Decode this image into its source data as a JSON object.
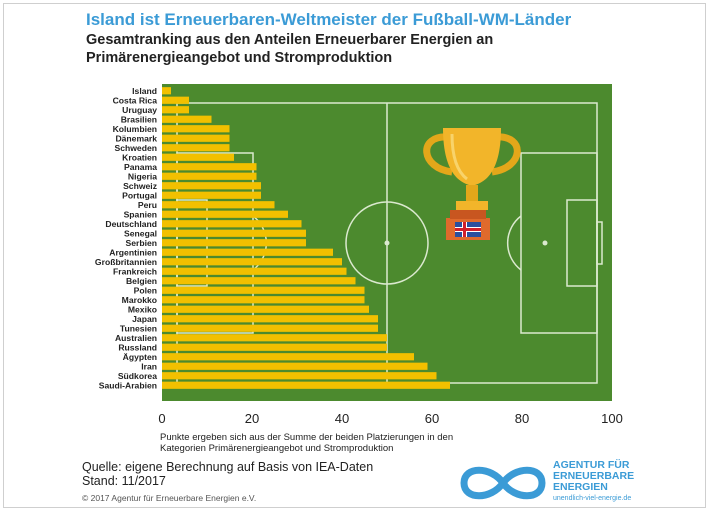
{
  "header": {
    "title": "Island ist Erneuerbaren-Weltmeister der Fußball-WM-Länder",
    "subtitle_line1": "Gesamtranking aus den Anteilen Erneuerbarer Energien an",
    "subtitle_line2": "Primärenergieangebot und Stromproduktion"
  },
  "chart_data": {
    "type": "bar",
    "orientation": "horizontal",
    "categories": [
      "Island",
      "Costa Rica",
      "Uruguay",
      "Brasilien",
      "Kolumbien",
      "Dänemark",
      "Schweden",
      "Kroatien",
      "Panama",
      "Nigeria",
      "Schweiz",
      "Portugal",
      "Peru",
      "Spanien",
      "Deutschland",
      "Senegal",
      "Serbien",
      "Argentinien",
      "Großbritannien",
      "Frankreich",
      "Belgien",
      "Polen",
      "Marokko",
      "Mexiko",
      "Japan",
      "Tunesien",
      "Australien",
      "Russland",
      "Ägypten",
      "Iran",
      "Südkorea",
      "Saudi-Arabien"
    ],
    "values": [
      2,
      6,
      6,
      11,
      15,
      15,
      15,
      16,
      21,
      21,
      22,
      22,
      25,
      28,
      31,
      32,
      32,
      38,
      40,
      41,
      43,
      45,
      45,
      46,
      48,
      48,
      50,
      50,
      56,
      59,
      61,
      64
    ],
    "xlim": [
      0,
      100
    ],
    "xticks": [
      0,
      20,
      40,
      60,
      80,
      100
    ],
    "grid": false,
    "bar_color": "#f2c000",
    "field_color": "#4c8a2e"
  },
  "note": {
    "line1": "Punkte ergeben sich aus der Summe der beiden Platzierungen in den",
    "line2": "Kategorien Primärenergieangebot und Stromproduktion"
  },
  "source": {
    "line1": "Quelle: eigene Berechnung auf Basis von IEA-Daten",
    "line2": "Stand: 11/2017"
  },
  "copyright": "© 2017 Agentur für Erneuerbare Energien e.V.",
  "logo": {
    "line1": "AGENTUR FÜR",
    "line2": "ERNEUERBARE",
    "line3": "ENERGIEN",
    "url": "unendlich-viel-energie.de",
    "color": "#3b9bd6"
  }
}
